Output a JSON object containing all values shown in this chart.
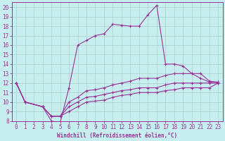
{
  "xlabel": "Windchill (Refroidissement éolien,°C)",
  "xlim": [
    -0.5,
    23.5
  ],
  "ylim": [
    8,
    20.5
  ],
  "xticks": [
    0,
    1,
    2,
    3,
    4,
    5,
    6,
    7,
    8,
    9,
    10,
    11,
    12,
    13,
    14,
    15,
    16,
    17,
    18,
    19,
    20,
    21,
    22,
    23
  ],
  "yticks": [
    8,
    9,
    10,
    11,
    12,
    13,
    14,
    15,
    16,
    17,
    18,
    19,
    20
  ],
  "bg_color": "#c6eeee",
  "grid_color": "#b0cccc",
  "line_color": "#993399",
  "spine_color": "#993399",
  "tick_fontsize": 5.5,
  "xlabel_fontsize": 5.5,
  "lines": [
    {
      "x": [
        0,
        1,
        3,
        4,
        5,
        6,
        7,
        8,
        9,
        10,
        11,
        12,
        13,
        14,
        15,
        16,
        17,
        18,
        19,
        20,
        21,
        22,
        23
      ],
      "y": [
        12,
        10,
        9.5,
        8.0,
        7.8,
        11.5,
        16.0,
        16.5,
        17.0,
        17.2,
        18.2,
        18.1,
        18.0,
        18.0,
        19.2,
        20.2,
        14.0,
        14.0,
        13.8,
        13.0,
        12.5,
        12.1,
        12.0
      ]
    },
    {
      "x": [
        0,
        1,
        3,
        4,
        5,
        6,
        7,
        8,
        9,
        10,
        11,
        12,
        13,
        14,
        15,
        16,
        17,
        18,
        19,
        20,
        21,
        22,
        23
      ],
      "y": [
        12,
        10,
        9.5,
        8.5,
        8.5,
        10.0,
        10.5,
        11.2,
        11.3,
        11.5,
        11.8,
        12.0,
        12.2,
        12.5,
        12.5,
        12.5,
        12.8,
        13.0,
        13.0,
        13.0,
        13.0,
        12.2,
        12.1
      ]
    },
    {
      "x": [
        0,
        1,
        3,
        4,
        5,
        6,
        7,
        8,
        9,
        10,
        11,
        12,
        13,
        14,
        15,
        16,
        17,
        18,
        19,
        20,
        21,
        22,
        23
      ],
      "y": [
        12,
        10,
        9.5,
        8.5,
        8.5,
        9.5,
        10.0,
        10.5,
        10.6,
        10.8,
        11.0,
        11.2,
        11.3,
        11.5,
        11.5,
        11.5,
        11.8,
        12.0,
        12.0,
        12.0,
        12.0,
        12.0,
        12.0
      ]
    },
    {
      "x": [
        0,
        1,
        3,
        4,
        5,
        6,
        7,
        8,
        9,
        10,
        11,
        12,
        13,
        14,
        15,
        16,
        17,
        18,
        19,
        20,
        21,
        22,
        23
      ],
      "y": [
        12,
        10,
        9.5,
        8.5,
        8.5,
        9.0,
        9.5,
        10.0,
        10.1,
        10.2,
        10.5,
        10.7,
        10.8,
        11.0,
        11.0,
        11.0,
        11.2,
        11.3,
        11.5,
        11.5,
        11.5,
        11.5,
        12.0
      ]
    }
  ]
}
